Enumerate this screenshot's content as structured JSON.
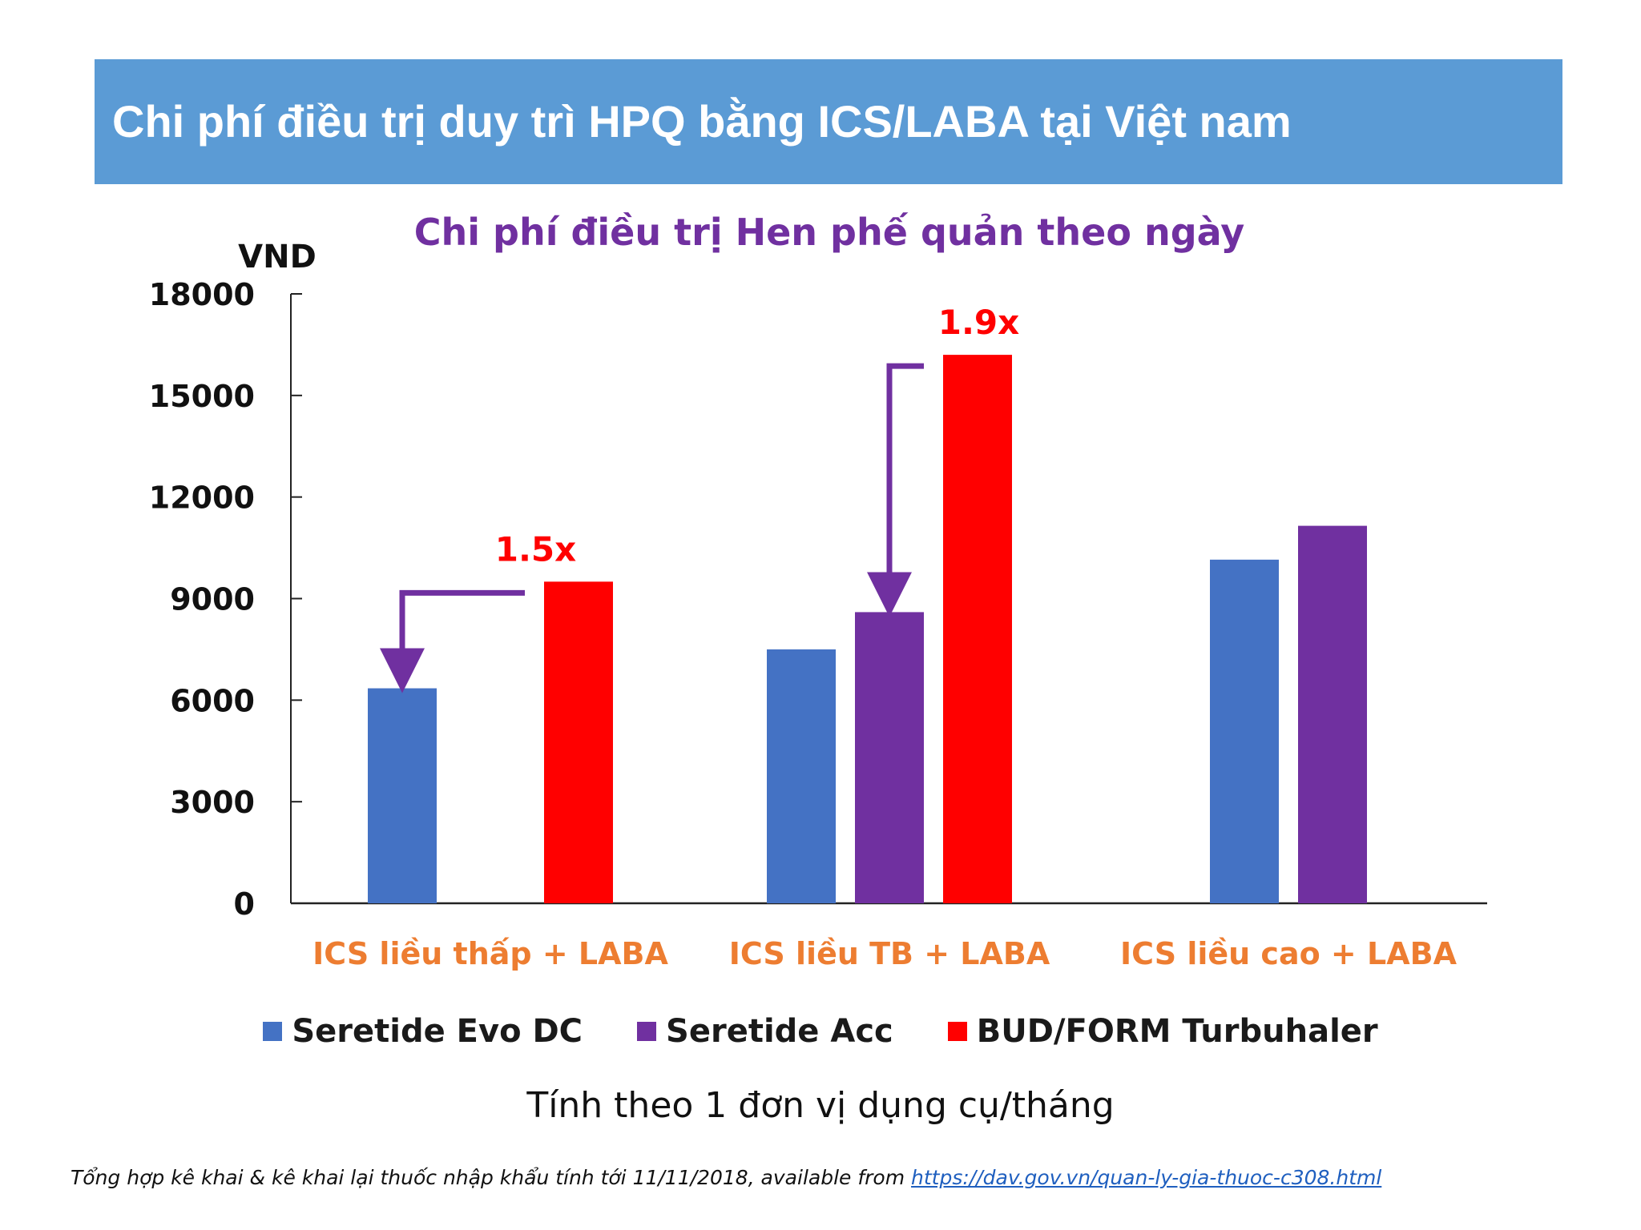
{
  "header": {
    "title": "Chi phí điều trị duy trì HPQ bằng ICS/LABA tại Việt nam"
  },
  "colors": {
    "header_bg": "#5b9bd5",
    "blue": "#4472c4",
    "purple": "#7030a0",
    "red": "#ff0000",
    "orange": "#ed7d31",
    "title_purple": "#7030a0",
    "arrow": "#7030a0"
  },
  "chart_data": {
    "type": "bar",
    "title": "Chi phí điều trị Hen phế quản theo ngày",
    "ylabel": "VND",
    "xlabel": "",
    "ylim": [
      0,
      18000
    ],
    "yticks": [
      0,
      3000,
      6000,
      9000,
      12000,
      15000,
      18000
    ],
    "categories": [
      "ICS liều thấp + LABA",
      "ICS liều TB + LABA",
      "ICS liều cao + LABA"
    ],
    "series": [
      {
        "name": "Seretide Evo DC",
        "color": "#4472c4",
        "values": [
          6350,
          7500,
          10150
        ]
      },
      {
        "name": "Seretide Acc",
        "color": "#7030a0",
        "values": [
          null,
          8600,
          11150
        ]
      },
      {
        "name": "BUD/FORM Turbuhaler",
        "color": "#ff0000",
        "values": [
          9500,
          16200,
          null
        ]
      }
    ],
    "grid": false,
    "legend": "bottom",
    "annotations": [
      {
        "text": "1.5x",
        "category": 0,
        "from_series": 2,
        "to_series": 0
      },
      {
        "text": "1.9x",
        "category": 1,
        "from_series": 2,
        "to_series": 1
      }
    ]
  },
  "note": "Tính theo 1 đơn vị dụng cụ/tháng",
  "source": {
    "text": "Tổng hợp kê khai & kê khai lại thuốc nhập khẩu tính tới 11/11/2018, available from ",
    "link": "https://dav.gov.vn/quan-ly-gia-thuoc-c308.html"
  }
}
